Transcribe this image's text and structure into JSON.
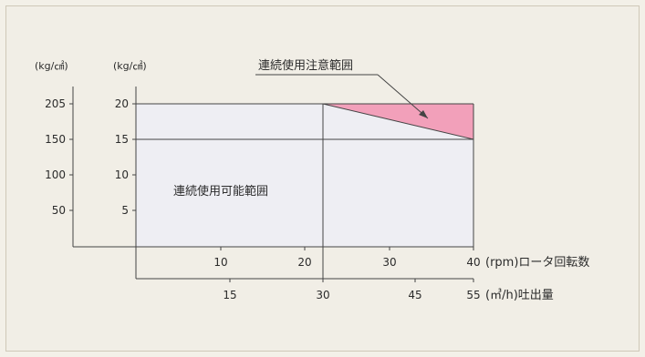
{
  "chart_data": {
    "type": "area",
    "y_outer_unit": "(kg/㎠)",
    "y_inner_unit": "(kg/㎠)",
    "y_outer_ticks": [
      "205",
      "150",
      "100",
      "50"
    ],
    "y_inner_ticks": [
      "20",
      "15",
      "10",
      "5"
    ],
    "x_rpm_ticks": [
      "10",
      "20",
      "30",
      "40"
    ],
    "x_rpm_unit": "(rpm)ロータ回転数",
    "x_flow_ticks": [
      "15",
      "30",
      "45",
      "55"
    ],
    "x_flow_unit": "(㎥/h)吐出量",
    "continuous_region_label": "連続使用可能範囲",
    "caution_region_label": "連続使用注意範囲",
    "x_rpm_range": [
      0,
      40
    ],
    "y_range": [
      0,
      20
    ],
    "continuous_region": {
      "x": [
        0,
        40
      ],
      "y_max": 20
    },
    "caution_region": {
      "x": [
        22,
        40
      ],
      "upper": [
        20,
        20
      ],
      "lower": [
        20,
        15
      ]
    },
    "colors": {
      "continuous": "#eeeef3",
      "caution": "#f2a0ba",
      "axis": "#444444"
    }
  }
}
